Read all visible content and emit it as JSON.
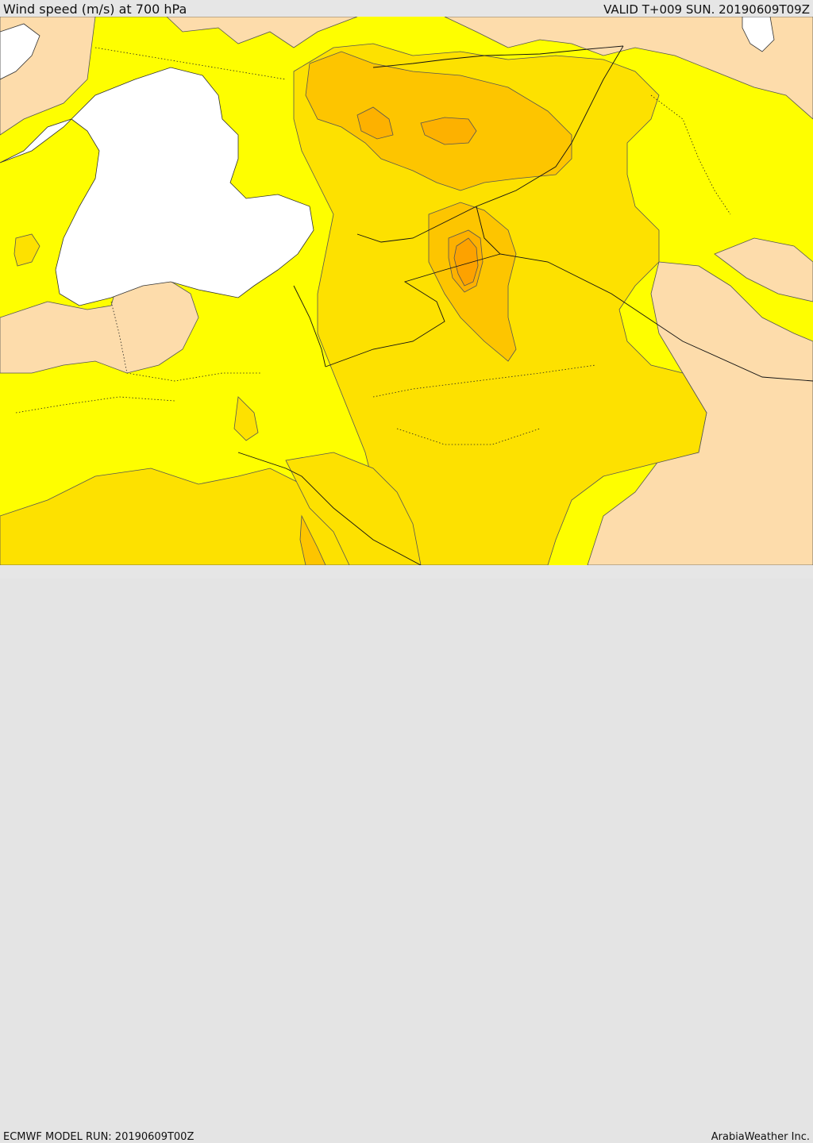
{
  "header": {
    "title": "Wind speed (m/s) at 700 hPa",
    "valid_time": "VALID T+009 SUN. 20190609T09Z"
  },
  "footer": {
    "model_run": "ECMWF MODEL RUN: 20190609T00Z",
    "credit": "ArabiaWeather Inc."
  },
  "colors": {
    "sea_white": "#ffffff",
    "band_0": "#fddcab",
    "band_1": "#fefe00",
    "band_2": "#fde100",
    "band_3": "#fdc500",
    "band_4": "#fdb100",
    "band_5": "#fda200",
    "contour": "#555555",
    "border": "#111111"
  }
}
